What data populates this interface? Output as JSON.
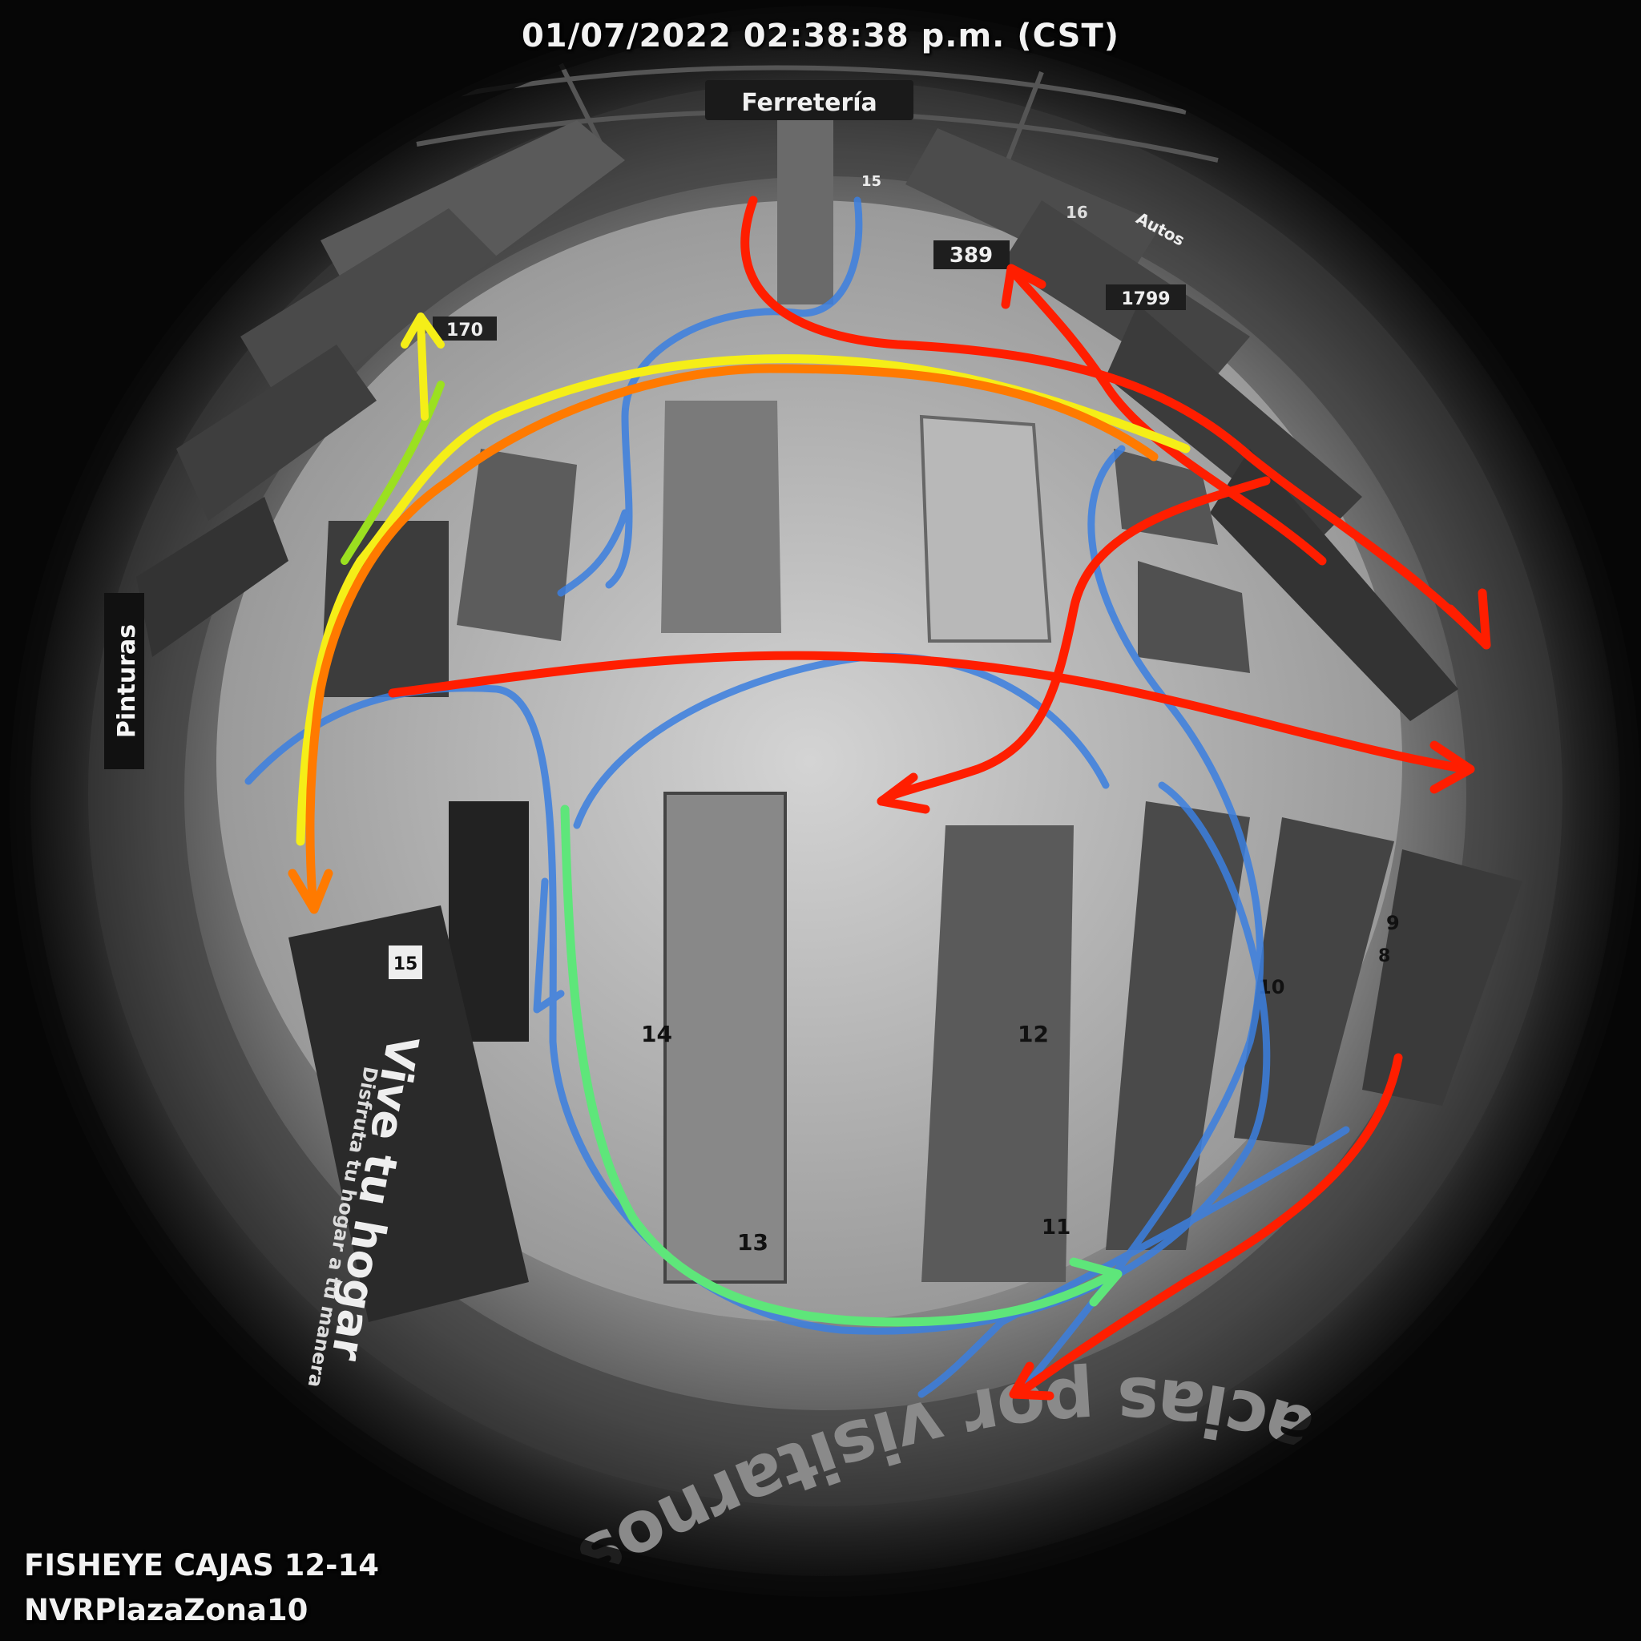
{
  "osd": {
    "timestamp": "01/07/2022 02:38:38 p.m. (CST)",
    "camera_name": "FISHEYE CAJAS 12-14",
    "nvr_name": "NVRPlazaZona10"
  },
  "store_signs": {
    "ferreteria": "Ferretería",
    "pinturas": "Pinturas",
    "autos": "Autos",
    "floor_message": "gracias por visitarnos",
    "banner_main": "Vive tu hogar",
    "banner_sub": "Disfruta tu hogar a tu manera",
    "price_389": "389",
    "price_1799": "1799",
    "price_170": "170"
  },
  "aisle_numbers": {
    "n15_top": "15",
    "n16": "16",
    "n15_side": "15",
    "n14": "14",
    "n13": "13",
    "n12": "12",
    "n11": "11",
    "n10": "10",
    "n9": "9",
    "n8": "8"
  },
  "colors": {
    "path_red": "#ff1e00",
    "path_blue": "#3b7fe0",
    "path_yellow": "#f5ee18",
    "path_orange": "#ff7a00",
    "path_green": "#5ee67a",
    "path_lime": "#9be020"
  }
}
